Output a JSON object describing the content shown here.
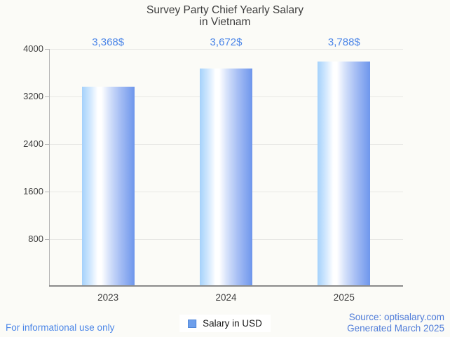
{
  "title": {
    "line1": "Survey Party Chief Yearly Salary",
    "line2": "in Vietnam"
  },
  "chart_data": {
    "type": "bar",
    "title": "Survey Party Chief Yearly Salary in Vietnam",
    "categories": [
      "2023",
      "2024",
      "2025"
    ],
    "series": [
      {
        "name": "Salary in USD",
        "values": [
          3368,
          3672,
          3788
        ]
      }
    ],
    "value_labels": [
      "3,368$",
      "3,672$",
      "3,788$"
    ],
    "xlabel": "",
    "ylabel": "",
    "ylim": [
      0,
      4000
    ],
    "yticks": [
      4000,
      3200,
      2400,
      1600,
      800
    ],
    "grid": true,
    "legend_position": "bottom-center",
    "bar_gradient": [
      "#A4D1FB",
      "#FFFFFF",
      "#6E96EC"
    ]
  },
  "legend": {
    "label": "Salary in USD",
    "marker_color": "#6D9EEB"
  },
  "footer": {
    "left": "For informational use only",
    "source_line1": "Source: optisalary.com",
    "source_line2": "Generated March 2025"
  },
  "colors": {
    "accent_blue": "#4C86E8",
    "title_gray": "#3D3D3D",
    "background": "#FBFBF7"
  }
}
